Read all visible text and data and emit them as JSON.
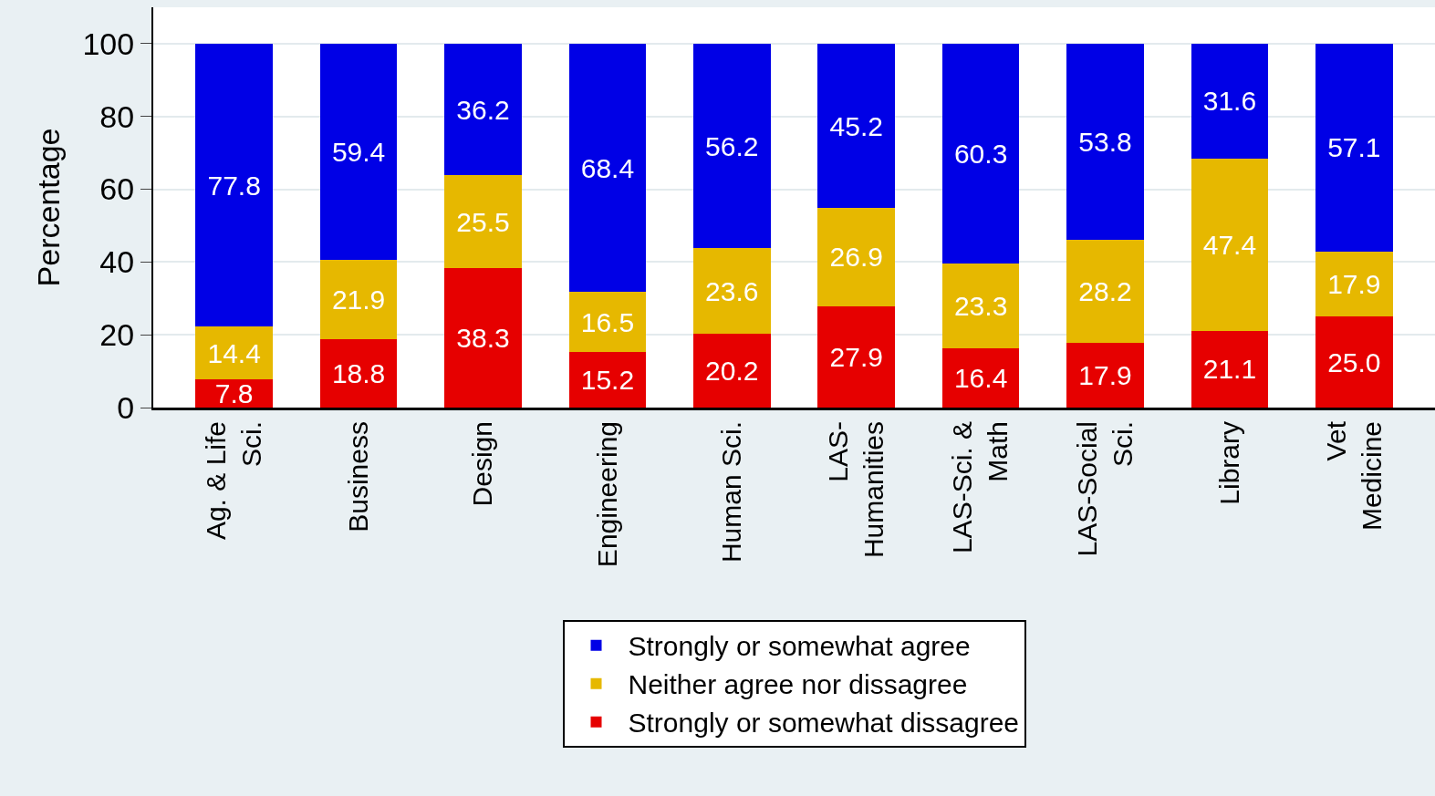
{
  "chart_data": {
    "type": "bar",
    "stacked": true,
    "ylabel": "Percentage",
    "categories": [
      "Ag. & Life\nSci.",
      "Business",
      "Design",
      "Engineering",
      "Human Sci.",
      "LAS-\nHumanities",
      "LAS-Sci. &\nMath",
      "LAS-Social\nSci.",
      "Library",
      "Vet\nMedicine"
    ],
    "series": [
      {
        "name": "Strongly or somewhat dissagree",
        "color": "#e60000",
        "values": [
          7.8,
          18.8,
          38.3,
          15.2,
          20.2,
          27.9,
          16.4,
          17.9,
          21.1,
          25.0
        ],
        "value_labels": [
          "7.8",
          "18.8",
          "38.3",
          "15.2",
          "20.2",
          "27.9",
          "16.4",
          "17.9",
          "21.1",
          "25.0"
        ]
      },
      {
        "name": "Neither agree nor dissagree",
        "color": "#e6b800",
        "values": [
          14.4,
          21.9,
          25.5,
          16.5,
          23.6,
          26.9,
          23.3,
          28.2,
          47.4,
          17.9
        ],
        "value_labels": [
          "14.4",
          "21.9",
          "25.5",
          "16.5",
          "23.6",
          "26.9",
          "23.3",
          "28.2",
          "47.4",
          "17.9"
        ]
      },
      {
        "name": "Strongly or somewhat agree",
        "color": "#0000e6",
        "values": [
          77.8,
          59.4,
          36.2,
          68.4,
          56.2,
          45.2,
          60.3,
          53.8,
          31.6,
          57.1
        ],
        "value_labels": [
          "77.8",
          "59.4",
          "36.2",
          "68.4",
          "56.2",
          "45.2",
          "60.3",
          "53.8",
          "31.6",
          "57.1"
        ]
      }
    ],
    "ylim": [
      0,
      110
    ],
    "yticks": [
      0,
      20,
      40,
      60,
      80,
      100
    ],
    "grid": "y",
    "legend": "bottom"
  }
}
